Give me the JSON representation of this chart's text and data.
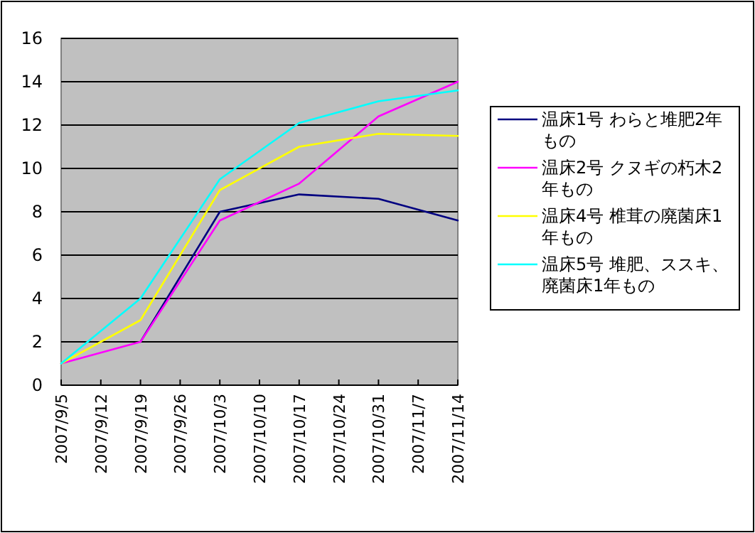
{
  "chart_data": {
    "type": "line",
    "x": [
      "2007-09-05",
      "2007-09-19",
      "2007-10-03",
      "2007-10-17",
      "2007-10-31",
      "2007-11-14"
    ],
    "series": [
      {
        "name": "温床1号 わらと堆肥2年もの",
        "color": "#000080",
        "values": [
          null,
          2,
          8.0,
          8.8,
          8.6,
          7.6
        ]
      },
      {
        "name": "温床2号 クヌギの朽木2年もの",
        "color": "#ff00ff",
        "values": [
          1,
          2,
          7.6,
          9.3,
          12.4,
          14.0
        ]
      },
      {
        "name": "温床4号 椎茸の廃菌床1年もの",
        "color": "#ffff00",
        "values": [
          1,
          3.0,
          9.0,
          11.0,
          11.6,
          11.5
        ]
      },
      {
        "name": "温床5号 堆肥、ススキ、廃菌床1年もの",
        "color": "#00ffff",
        "values": [
          1,
          4.0,
          9.5,
          12.1,
          13.1,
          13.6
        ]
      }
    ],
    "xlim": [
      "2007-09-05",
      "2007-11-14"
    ],
    "xticks": [
      {
        "value": "2007-09-05",
        "label": "2007/9/5"
      },
      {
        "value": "2007-09-12",
        "label": "2007/9/12"
      },
      {
        "value": "2007-09-19",
        "label": "2007/9/19"
      },
      {
        "value": "2007-09-26",
        "label": "2007/9/26"
      },
      {
        "value": "2007-10-03",
        "label": "2007/10/3"
      },
      {
        "value": "2007-10-10",
        "label": "2007/10/10"
      },
      {
        "value": "2007-10-17",
        "label": "2007/10/17"
      },
      {
        "value": "2007-10-24",
        "label": "2007/10/24"
      },
      {
        "value": "2007-10-31",
        "label": "2007/10/31"
      },
      {
        "value": "2007-11-07",
        "label": "2007/11/7"
      },
      {
        "value": "2007-11-14",
        "label": "2007/11/14"
      }
    ],
    "ylim": [
      0,
      16
    ],
    "yticks": [
      0,
      2,
      4,
      6,
      8,
      10,
      12,
      14,
      16
    ],
    "grid": "y",
    "legend": "right",
    "marker": "none",
    "line_style": "solid"
  }
}
